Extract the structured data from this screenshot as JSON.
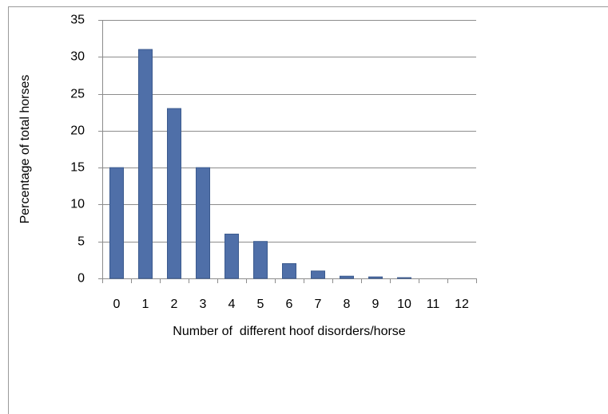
{
  "chart_data": {
    "type": "bar",
    "xlabel": "Number of  different hoof disorders/horse",
    "ylabel": "Percentage of total horses",
    "categories": [
      "0",
      "1",
      "2",
      "3",
      "4",
      "5",
      "6",
      "7",
      "8",
      "9",
      "10",
      "11",
      "12"
    ],
    "values": [
      15,
      31,
      23,
      15,
      6,
      5,
      2,
      1,
      0.3,
      0.2,
      0.1,
      0,
      0
    ],
    "color": "#4f6fa8",
    "ylim": [
      0,
      35
    ],
    "yticks": [
      0,
      5,
      10,
      15,
      20,
      25,
      30,
      35
    ],
    "grid": true
  }
}
